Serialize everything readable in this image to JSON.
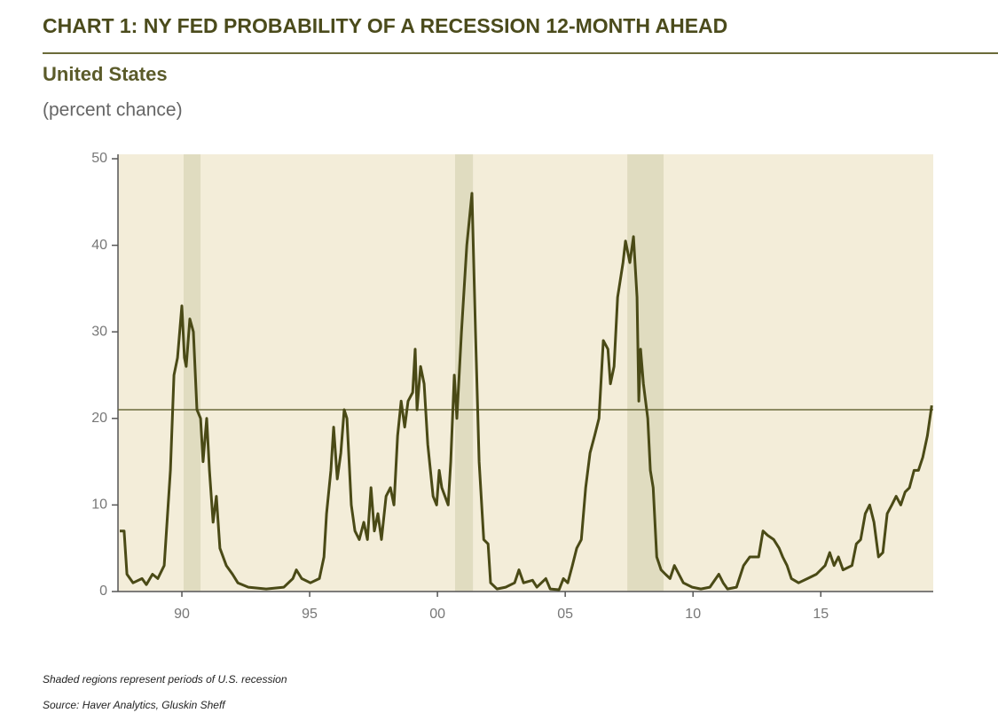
{
  "chart_data": {
    "type": "line",
    "title": "CHART 1: NY FED PROBABILITY OF A RECESSION 12-MONTH AHEAD",
    "subtitle": "United States",
    "y_label": "(percent chance)",
    "notes": [
      "Shaded regions represent periods of U.S. recession",
      "Source: Haver Analytics, Gluskin Sheff"
    ],
    "x": [
      1987.57,
      1987.74,
      1987.85,
      1988.09,
      1988.44,
      1988.61,
      1988.85,
      1989.06,
      1989.31,
      1989.55,
      1989.69,
      1989.83,
      1990.0,
      1990.1,
      1990.17,
      1990.31,
      1990.45,
      1990.59,
      1990.73,
      1990.83,
      1990.97,
      1991.08,
      1991.22,
      1991.35,
      1991.49,
      1991.74,
      1991.98,
      1992.19,
      1992.6,
      1993.3,
      1993.99,
      1994.34,
      1994.48,
      1994.69,
      1995.03,
      1995.38,
      1995.56,
      1995.66,
      1995.83,
      1995.94,
      1996.08,
      1996.22,
      1996.35,
      1996.46,
      1996.63,
      1996.77,
      1996.94,
      1997.12,
      1997.26,
      1997.4,
      1997.53,
      1997.67,
      1997.81,
      1997.99,
      1998.16,
      1998.3,
      1998.44,
      1998.58,
      1998.72,
      1998.85,
      1999.03,
      1999.13,
      1999.2,
      1999.34,
      1999.48,
      1999.62,
      1999.83,
      1999.97,
      2000.07,
      2000.17,
      2000.42,
      2000.52,
      2000.66,
      2000.76,
      2000.94,
      2001.15,
      2001.35,
      2001.49,
      2001.63,
      2001.81,
      2001.98,
      2002.08,
      2002.33,
      2002.67,
      2003.02,
      2003.19,
      2003.37,
      2003.72,
      2003.89,
      2004.24,
      2004.41,
      2004.76,
      2004.93,
      2005.1,
      2005.28,
      2005.45,
      2005.63,
      2005.8,
      2005.97,
      2006.15,
      2006.32,
      2006.49,
      2006.67,
      2006.77,
      2006.91,
      2007.05,
      2007.26,
      2007.36,
      2007.53,
      2007.67,
      2007.81,
      2007.88,
      2007.95,
      2008.06,
      2008.23,
      2008.33,
      2008.44,
      2008.58,
      2008.75,
      2008.92,
      2009.1,
      2009.27,
      2009.62,
      2009.97,
      2010.31,
      2010.66,
      2011.01,
      2011.18,
      2011.35,
      2011.7,
      2011.98,
      2012.22,
      2012.57,
      2012.74,
      2012.92,
      2013.16,
      2013.37,
      2013.51,
      2013.68,
      2013.85,
      2014.13,
      2014.48,
      2014.83,
      2015.17,
      2015.35,
      2015.52,
      2015.69,
      2015.87,
      2016.22,
      2016.39,
      2016.56,
      2016.74,
      2016.91,
      2017.08,
      2017.26,
      2017.43,
      2017.6,
      2017.78,
      2017.95,
      2018.13,
      2018.3,
      2018.47,
      2018.65,
      2018.82,
      2018.99,
      2019.17,
      2019.34
    ],
    "series": [
      {
        "color": "#4a4a16",
        "values": [
          7,
          7,
          2,
          1,
          1.5,
          0.8,
          2,
          1.5,
          3,
          14,
          25,
          27,
          33,
          27,
          26,
          31.5,
          30,
          21,
          20,
          15,
          20,
          14,
          8,
          11,
          5,
          3,
          2,
          1,
          0.5,
          0.3,
          0.5,
          1.5,
          2.5,
          1.5,
          1,
          1.5,
          4,
          9,
          14,
          19,
          13,
          16,
          21,
          20,
          10,
          7,
          6,
          8,
          6,
          12,
          7,
          9,
          6,
          11,
          12,
          10,
          18,
          22,
          19,
          22,
          23,
          28,
          21,
          26,
          24,
          17,
          11,
          10,
          14,
          12,
          10,
          15,
          25,
          20,
          30,
          40,
          46,
          30,
          15,
          6,
          5.5,
          1,
          0.3,
          0.5,
          1,
          2.5,
          1,
          1.3,
          0.5,
          1.5,
          0.3,
          0.2,
          1.5,
          1,
          3,
          5,
          6,
          12,
          16,
          18,
          20,
          29,
          28,
          24,
          26,
          34,
          38,
          40.5,
          38,
          41,
          34,
          22,
          28,
          24,
          20,
          14,
          12,
          4,
          2.5,
          2,
          1.5,
          3,
          1,
          0.5,
          0.3,
          0.5,
          2,
          1,
          0.3,
          0.5,
          3,
          4,
          4,
          7,
          6.5,
          6,
          5,
          4,
          3,
          1.5,
          1,
          1.5,
          2,
          3,
          4.5,
          3,
          4,
          2.5,
          3,
          5.5,
          6,
          9,
          10,
          8,
          4,
          4.5,
          9,
          10,
          11,
          10,
          11.5,
          12,
          14,
          14,
          15.5,
          18,
          21.5
        ]
      }
    ],
    "xlim": [
      1987.5,
      2019.4
    ],
    "xticks": [
      {
        "value": 1990,
        "label": "90"
      },
      {
        "value": 1995,
        "label": "95"
      },
      {
        "value": 2000,
        "label": "00"
      },
      {
        "value": 2005,
        "label": "05"
      },
      {
        "value": 2010,
        "label": "10"
      },
      {
        "value": 2015,
        "label": "15"
      }
    ],
    "ylim": [
      0,
      50
    ],
    "yticks": [
      0,
      10,
      20,
      30,
      40,
      50
    ],
    "reference_line": 21,
    "recessions": [
      {
        "start": 1990.07,
        "end": 1990.73
      },
      {
        "start": 2000.69,
        "end": 2001.39
      },
      {
        "start": 2007.43,
        "end": 2008.85
      }
    ],
    "background": "#f3edd9",
    "recession_color": "#e0dcc0"
  }
}
